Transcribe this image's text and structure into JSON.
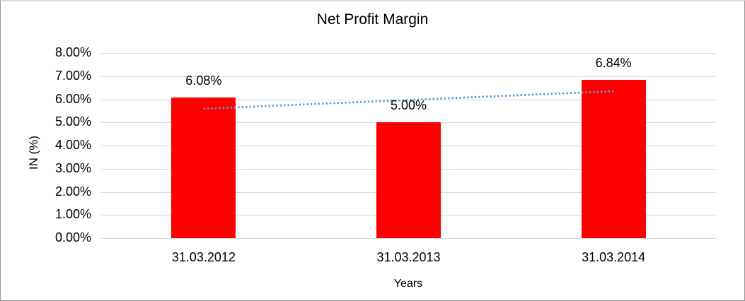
{
  "chart_data": {
    "type": "bar",
    "title": "Net Profit Margin",
    "categories": [
      "31.03.2012",
      "31.03.2013",
      "31.03.2014"
    ],
    "series": [
      {
        "name": "Net Profit Margin",
        "values": [
          6.08,
          5.0,
          6.84
        ]
      }
    ],
    "data_labels": [
      "6.08%",
      "5.00%",
      "6.84%"
    ],
    "xlabel": "Years",
    "ylabel": "IN (%)",
    "ylim": [
      0,
      8
    ],
    "ytick_labels": [
      "0.00%",
      "1.00%",
      "2.00%",
      "3.00%",
      "4.00%",
      "5.00%",
      "6.00%",
      "7.00%",
      "8.00%"
    ],
    "grid": true,
    "legend": false,
    "colors": {
      "bar": "#FF0000",
      "gridline": "#D9D9D9",
      "text": "#000000",
      "trendline": "#5B9BD5",
      "frame_border": "#969696"
    },
    "trendline": {
      "type": "linear",
      "style": "dotted",
      "color": "#5B9BD5",
      "start_value": 5.59,
      "end_value": 6.35
    }
  }
}
